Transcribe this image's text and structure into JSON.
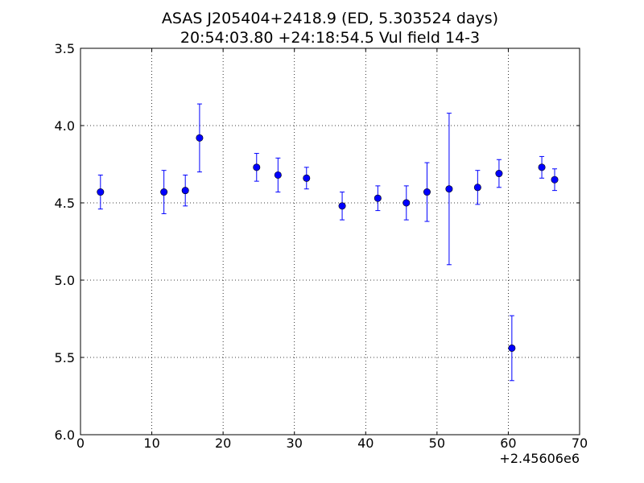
{
  "chart_data": {
    "type": "scatter",
    "title": "ASAS J205404+2418.9 (ED, 5.303524 days)",
    "subtitle": "20:54:03.80 +24:18:54.5 Vul field 14-3",
    "xlabel": "",
    "ylabel": "",
    "x_offset_label": "+2.45606e6",
    "xlim": [
      0,
      70
    ],
    "ylim": [
      6.0,
      3.5
    ],
    "y_inverted": true,
    "grid": true,
    "grid_style": "dotted",
    "x_ticks": [
      0,
      10,
      20,
      30,
      40,
      50,
      60,
      70
    ],
    "x_tick_labels": [
      "0",
      "10",
      "20",
      "30",
      "40",
      "50",
      "60",
      "70"
    ],
    "y_ticks": [
      3.5,
      4.0,
      4.5,
      5.0,
      5.5,
      6.0
    ],
    "y_tick_labels": [
      "3.5",
      "4.0",
      "4.5",
      "5.0",
      "5.5",
      "6.0"
    ],
    "marker_color": "#0000ff",
    "errorbar_color": "#0000ff",
    "points": [
      {
        "x": 2.8,
        "y": 4.43,
        "err_low": 0.11,
        "err_high": 0.11
      },
      {
        "x": 11.7,
        "y": 4.43,
        "err_low": 0.14,
        "err_high": 0.14
      },
      {
        "x": 14.7,
        "y": 4.42,
        "err_low": 0.1,
        "err_high": 0.1
      },
      {
        "x": 16.7,
        "y": 4.08,
        "err_low": 0.22,
        "err_high": 0.22
      },
      {
        "x": 24.7,
        "y": 4.27,
        "err_low": 0.09,
        "err_high": 0.09
      },
      {
        "x": 27.7,
        "y": 4.32,
        "err_low": 0.11,
        "err_high": 0.11
      },
      {
        "x": 31.7,
        "y": 4.34,
        "err_low": 0.07,
        "err_high": 0.07
      },
      {
        "x": 36.7,
        "y": 4.52,
        "err_low": 0.09,
        "err_high": 0.09
      },
      {
        "x": 41.7,
        "y": 4.47,
        "err_low": 0.08,
        "err_high": 0.08
      },
      {
        "x": 45.7,
        "y": 4.5,
        "err_low": 0.11,
        "err_high": 0.11
      },
      {
        "x": 48.6,
        "y": 4.43,
        "err_low": 0.19,
        "err_high": 0.19
      },
      {
        "x": 51.7,
        "y": 4.41,
        "err_low": 0.49,
        "err_high": 0.49
      },
      {
        "x": 55.7,
        "y": 4.4,
        "err_low": 0.11,
        "err_high": 0.11
      },
      {
        "x": 58.7,
        "y": 4.31,
        "err_low": 0.09,
        "err_high": 0.09
      },
      {
        "x": 60.5,
        "y": 5.44,
        "err_low": 0.21,
        "err_high": 0.21
      },
      {
        "x": 64.7,
        "y": 4.27,
        "err_low": 0.07,
        "err_high": 0.07
      },
      {
        "x": 66.5,
        "y": 4.35,
        "err_low": 0.07,
        "err_high": 0.07
      }
    ]
  }
}
